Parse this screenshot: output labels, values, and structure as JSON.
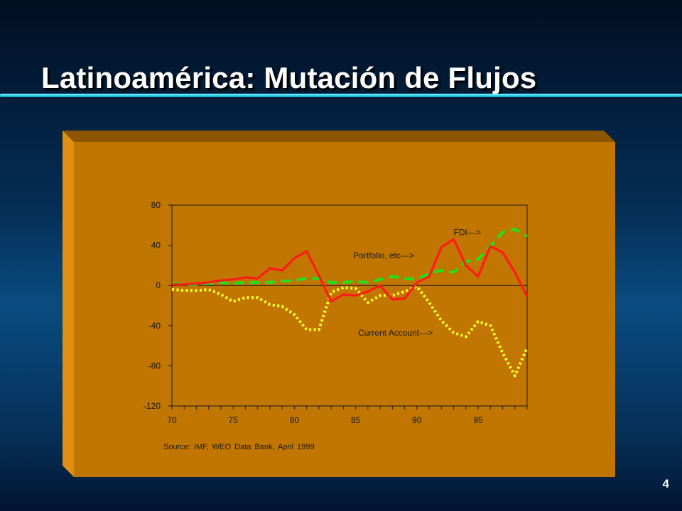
{
  "slide": {
    "title": "Latinoamérica:  Mutación de Flujos",
    "page_number": "4",
    "source": "Source:  IMF,  WEO  Data Bank,  April 1999"
  },
  "colors": {
    "panel_front": "#c07600",
    "panel_top": "#8c5600",
    "panel_side": "#e0900e",
    "fdi": "#ff1a1a",
    "portfolio": "#20e020",
    "current_account": "#ffff26"
  },
  "chart_data": {
    "type": "line",
    "title": "",
    "xlabel": "",
    "ylabel": "",
    "xlim": [
      70,
      99
    ],
    "ylim": [
      -120,
      80
    ],
    "x_ticks": [
      "70",
      "75",
      "80",
      "85",
      "90",
      "95"
    ],
    "y_ticks": [
      "80",
      "40",
      "0",
      "-40",
      "-80",
      "-120"
    ],
    "grid": false,
    "x": [
      70,
      71,
      72,
      73,
      74,
      75,
      76,
      77,
      78,
      79,
      80,
      81,
      82,
      83,
      84,
      85,
      86,
      87,
      88,
      89,
      90,
      91,
      92,
      93,
      94,
      95,
      96,
      97,
      98,
      99
    ],
    "series": [
      {
        "name": "FDI--->",
        "style": "solid",
        "values": [
          1,
          1,
          2,
          3,
          5,
          6,
          8,
          7,
          17,
          15,
          27,
          34,
          10,
          -16,
          -9,
          -10,
          -6,
          0,
          -14,
          -13,
          3,
          9,
          38,
          46,
          20,
          9,
          39,
          33,
          13,
          -11
        ]
      },
      {
        "name": "Portfolio, etc--->",
        "style": "dashed",
        "values": [
          2,
          1,
          1,
          2,
          3,
          2,
          3,
          3,
          3,
          4,
          5,
          7,
          7,
          3,
          3,
          4,
          3,
          6,
          9,
          7,
          6,
          12,
          15,
          13,
          24,
          26,
          39,
          53,
          56,
          49
        ]
      },
      {
        "name": "Current Account--->",
        "style": "dotted",
        "values": [
          -4,
          -5,
          -5,
          -4,
          -9,
          -16,
          -12,
          -12,
          -19,
          -21,
          -29,
          -44,
          -44,
          -7,
          -2,
          -3,
          -17,
          -10,
          -10,
          -6,
          -1,
          -17,
          -35,
          -47,
          -51,
          -36,
          -40,
          -67,
          -90,
          -62
        ]
      }
    ],
    "annotations": [
      {
        "text": "FDI--->",
        "x": 93,
        "y": 50
      },
      {
        "text": "Portfolio, etc--->",
        "x": 84.8,
        "y": 27
      },
      {
        "text": "Current Account--->",
        "x": 85.2,
        "y": -50
      }
    ]
  }
}
